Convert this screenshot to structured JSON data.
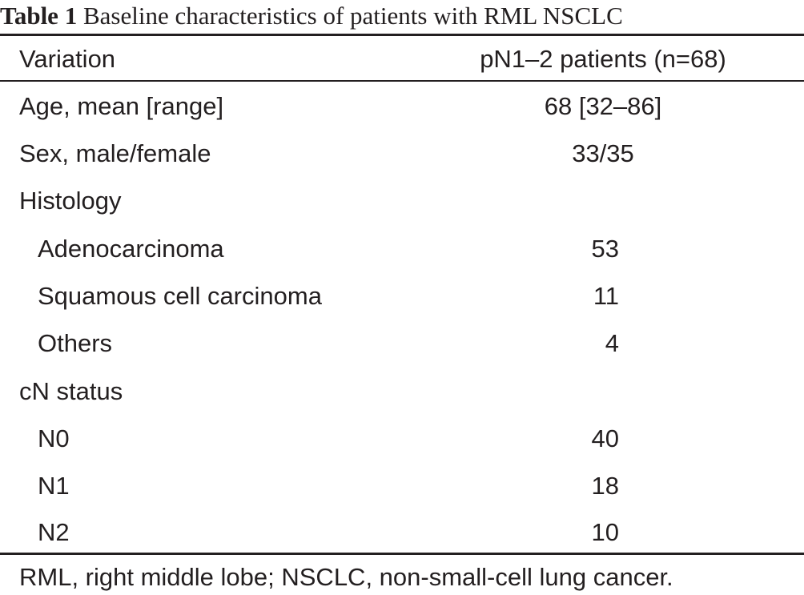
{
  "caption": {
    "label": "Table 1",
    "text": "Baseline characteristics of patients with RML NSCLC"
  },
  "table": {
    "headers": [
      "Variation",
      "pN1–2 patients (n=68)"
    ],
    "rows": [
      {
        "label": "Age, mean [range]",
        "value": "68 [32–86]"
      },
      {
        "label": "Sex, male/female",
        "value": "33/35"
      },
      {
        "label": "Histology",
        "value": ""
      },
      {
        "label": "Adenocarcinoma",
        "value": "53"
      },
      {
        "label": "Squamous cell carcinoma",
        "value": "11"
      },
      {
        "label": "Others",
        "value": "4"
      },
      {
        "label": "cN status",
        "value": ""
      },
      {
        "label": "N0",
        "value": "40"
      },
      {
        "label": "N1",
        "value": "18"
      },
      {
        "label": "N2",
        "value": "10"
      }
    ]
  },
  "footnote": "RML, right middle lobe; NSCLC, non-small-cell lung cancer."
}
